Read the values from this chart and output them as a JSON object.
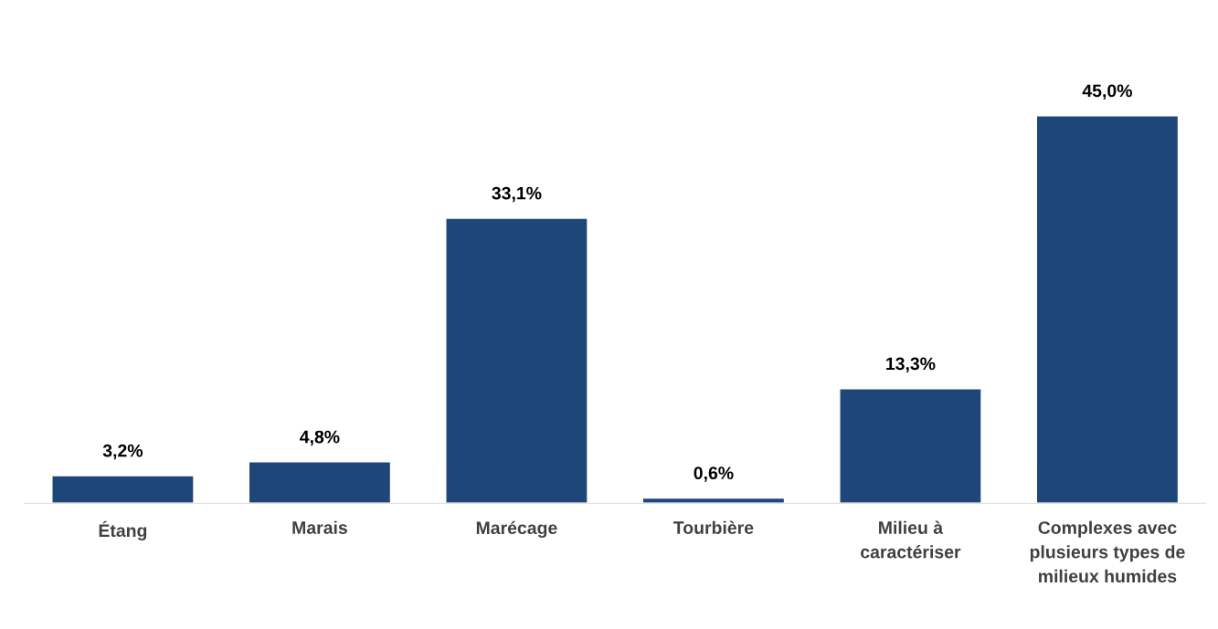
{
  "chart_data": {
    "type": "bar",
    "categories": [
      "Étang",
      "Marais",
      "Marécage",
      "Tourbière",
      "Milieu à\ncaractériser",
      "Complexes avec\nplusieurs types de\nmilieux humides"
    ],
    "values": [
      3.2,
      4.8,
      33.1,
      0.6,
      13.3,
      45.0
    ],
    "value_labels": [
      "3,2%",
      "4,8%",
      "33,1%",
      "0,6%",
      "13,3%",
      "45,0%"
    ],
    "color": "#1f4679",
    "grid": false,
    "legend": false
  }
}
